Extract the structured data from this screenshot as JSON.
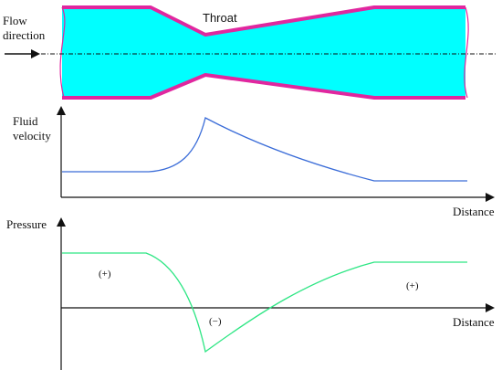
{
  "labels": {
    "throat": "Throat",
    "flow_direction_line1": "Flow",
    "flow_direction_line2": "direction",
    "fluid_velocity_line1": "Fluid",
    "fluid_velocity_line2": "velocity",
    "distance_velocity": "Distance",
    "pressure": "Pressure",
    "distance_pressure": "Distance",
    "pressure_positive_left": "(+)",
    "pressure_negative": "(−)",
    "pressure_positive_right": "(+)"
  },
  "colors": {
    "fluid_fill": "#00FFFF",
    "wall": "#E0279F",
    "velocity_curve": "#3A6CD8",
    "pressure_curve": "#2EE684",
    "axes": "#111111"
  }
}
